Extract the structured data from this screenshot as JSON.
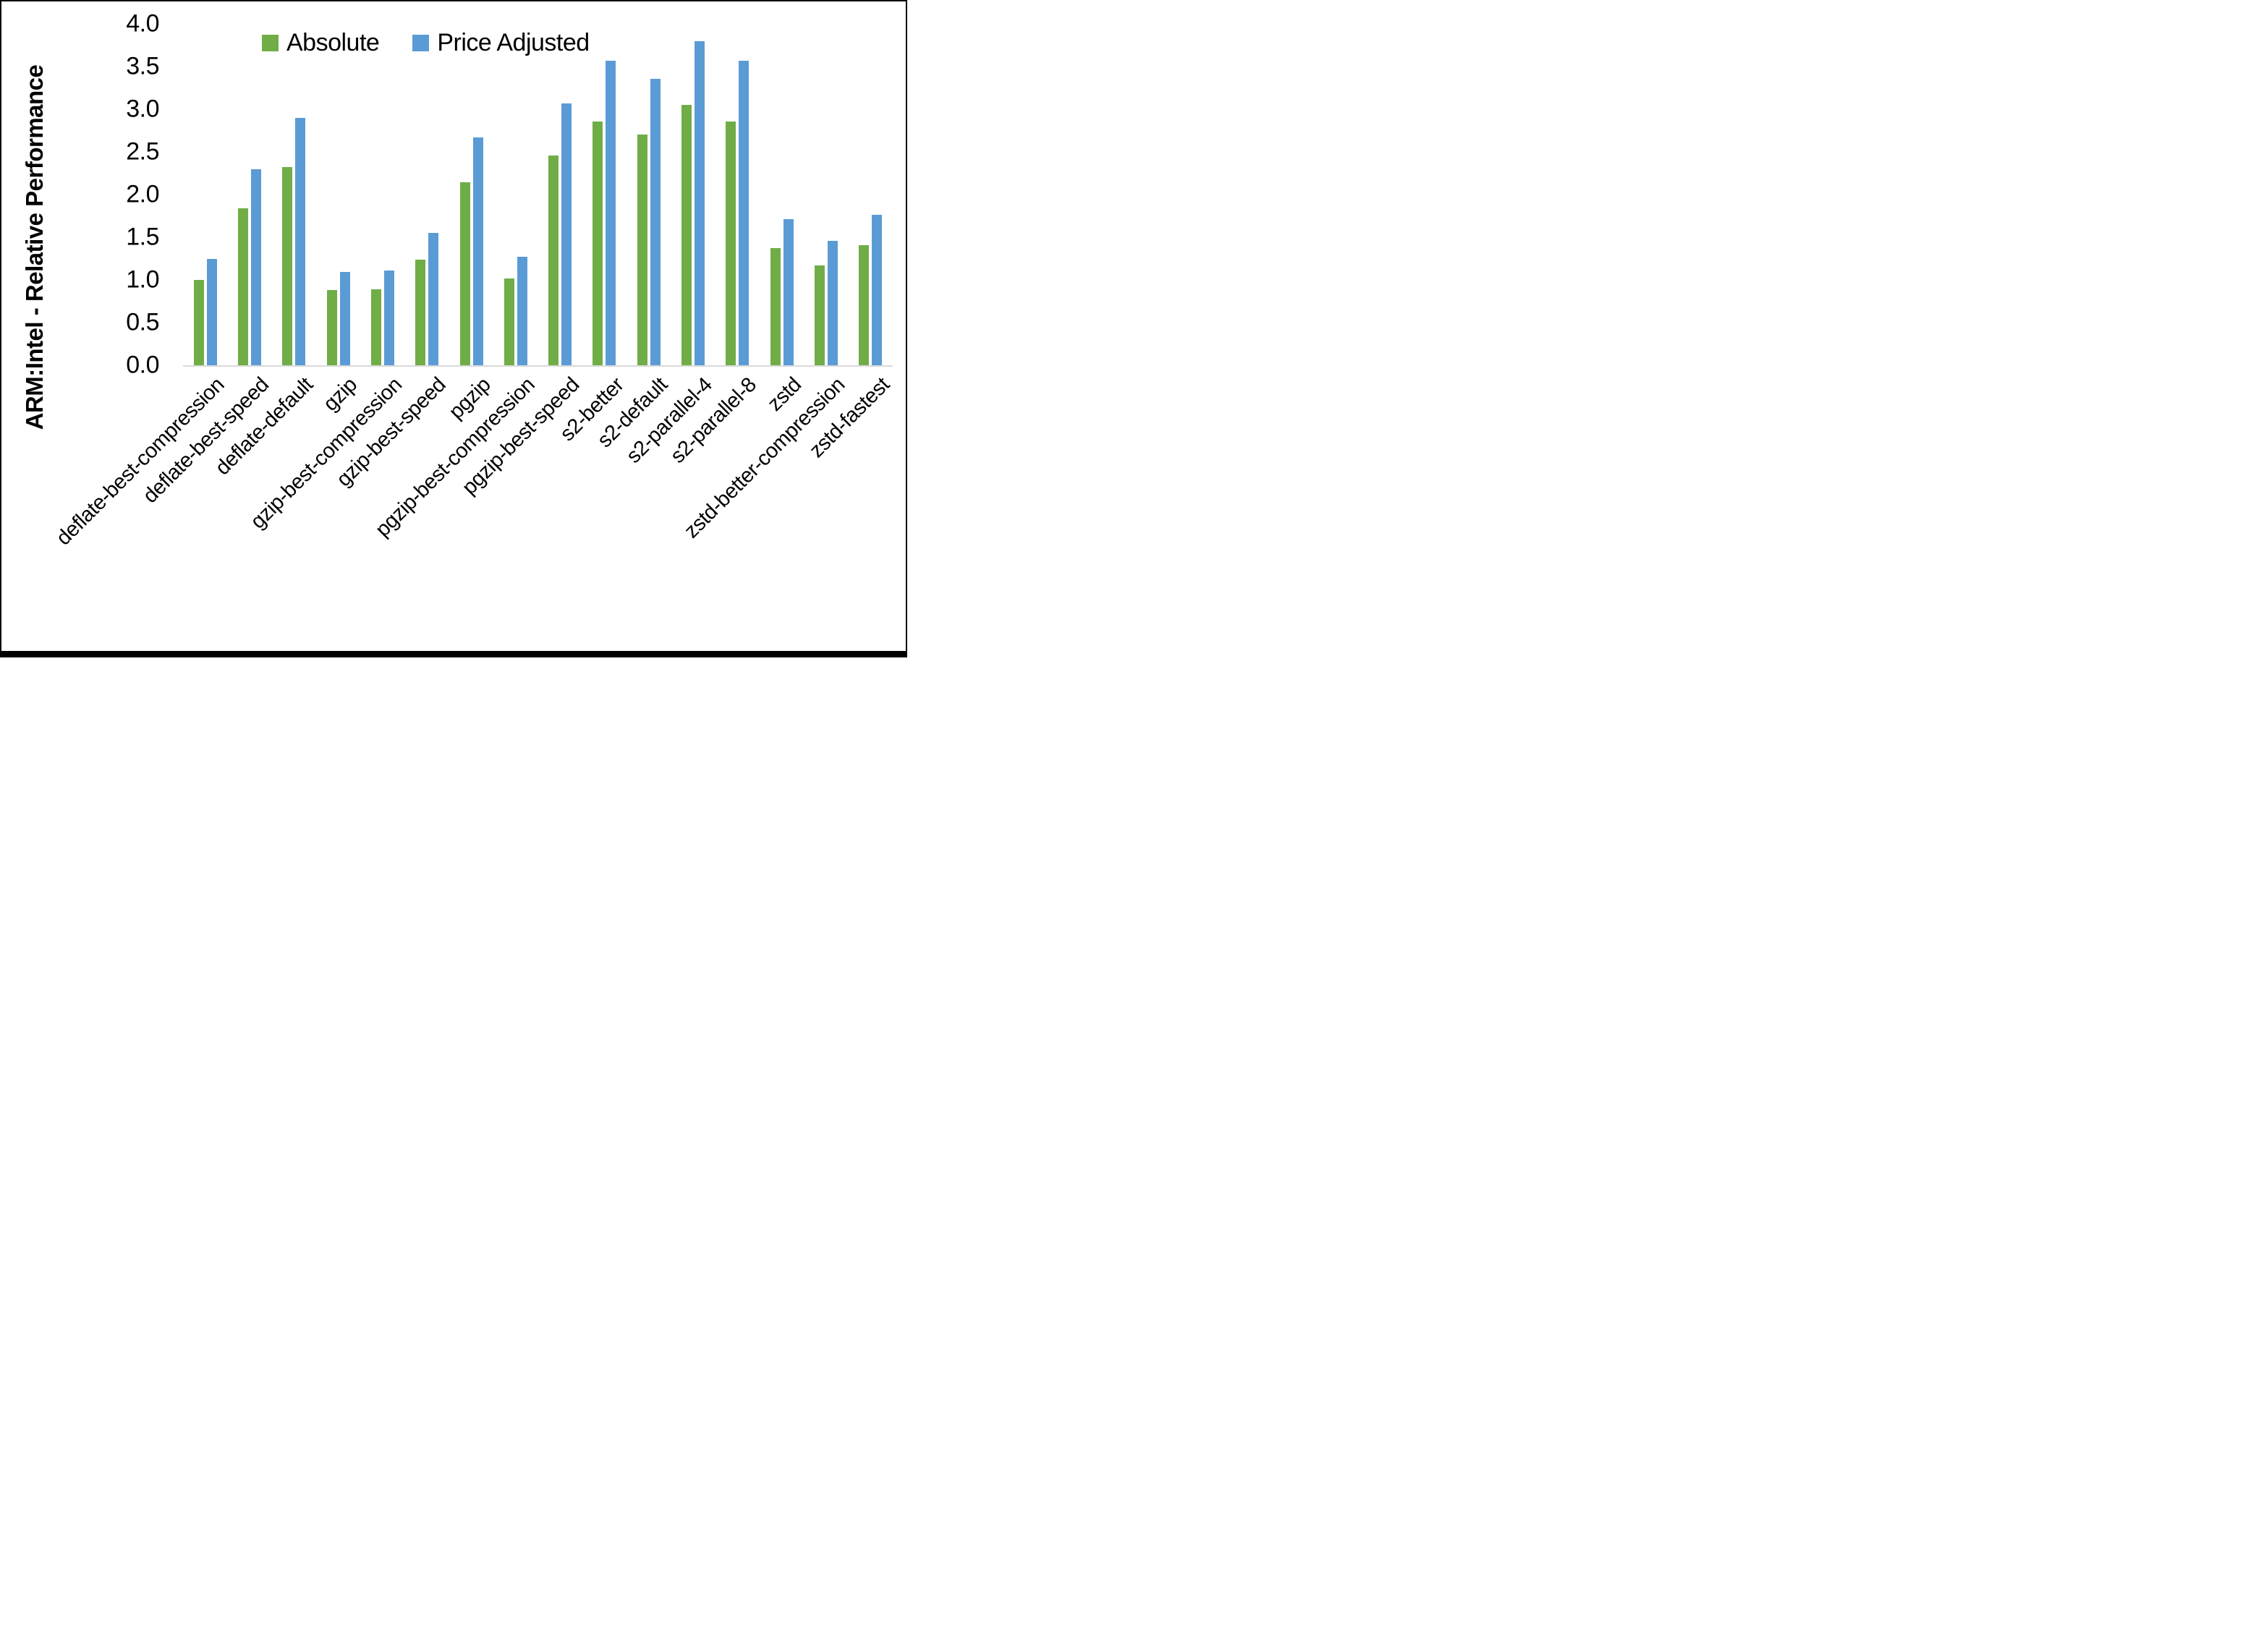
{
  "chart_data": {
    "type": "bar",
    "title": "",
    "xlabel": "",
    "ylabel": "ARM:Intel - Relative Performance",
    "ylim": [
      0.0,
      4.0
    ],
    "ytick_step": 0.5,
    "yticks": [
      "0.0",
      "0.5",
      "1.0",
      "1.5",
      "2.0",
      "2.5",
      "3.0",
      "3.5",
      "4.0"
    ],
    "grid": false,
    "legend_position": "top-center",
    "categories": [
      "deflate-best-compression",
      "deflate-best-speed",
      "deflate-default",
      "gzip",
      "gzip-best-compression",
      "gzip-best-speed",
      "pgzip",
      "pgzip-best-compression",
      "pgzip-best-speed",
      "s2-better",
      "s2-default",
      "s2-parallel-4",
      "s2-parallel-8",
      "zstd",
      "zstd-better-compression",
      "zstd-fastest"
    ],
    "series": [
      {
        "name": "Absolute",
        "color": "#70AD47",
        "values": [
          1.0,
          1.84,
          2.32,
          0.88,
          0.89,
          1.24,
          2.14,
          1.02,
          2.46,
          2.86,
          2.7,
          3.05,
          2.86,
          1.37,
          1.17,
          1.41
        ]
      },
      {
        "name": "Price Adjusted",
        "color": "#5B9BD5",
        "values": [
          1.25,
          2.3,
          2.9,
          1.09,
          1.11,
          1.55,
          2.67,
          1.27,
          3.07,
          3.57,
          3.36,
          3.8,
          3.57,
          1.71,
          1.46,
          1.76
        ]
      }
    ]
  },
  "colors": {
    "axis_line": "#D9D9D9",
    "text": "#000000",
    "background": "#FFFFFF",
    "frame": "#000000"
  }
}
